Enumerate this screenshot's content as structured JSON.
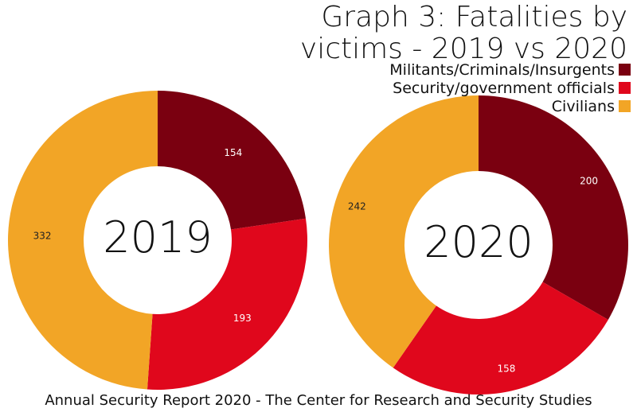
{
  "chart_data": {
    "type": "pie",
    "title_line1": "Graph 3: Fatalities by",
    "title_line2": "victims - 2019 vs 2020",
    "legend": [
      {
        "label": "Militants/Criminals/Insurgents",
        "color": "#7a0010"
      },
      {
        "label": "Security/government officials",
        "color": "#e0071c"
      },
      {
        "label": "Civilians",
        "color": "#f2a526"
      }
    ],
    "charts": [
      {
        "center_label": "2019",
        "values": [
          154,
          193,
          332
        ]
      },
      {
        "center_label": "2020",
        "values": [
          200,
          158,
          242
        ]
      }
    ],
    "footer": "Annual Security Report 2020 - The Center for Research and Security Studies"
  }
}
